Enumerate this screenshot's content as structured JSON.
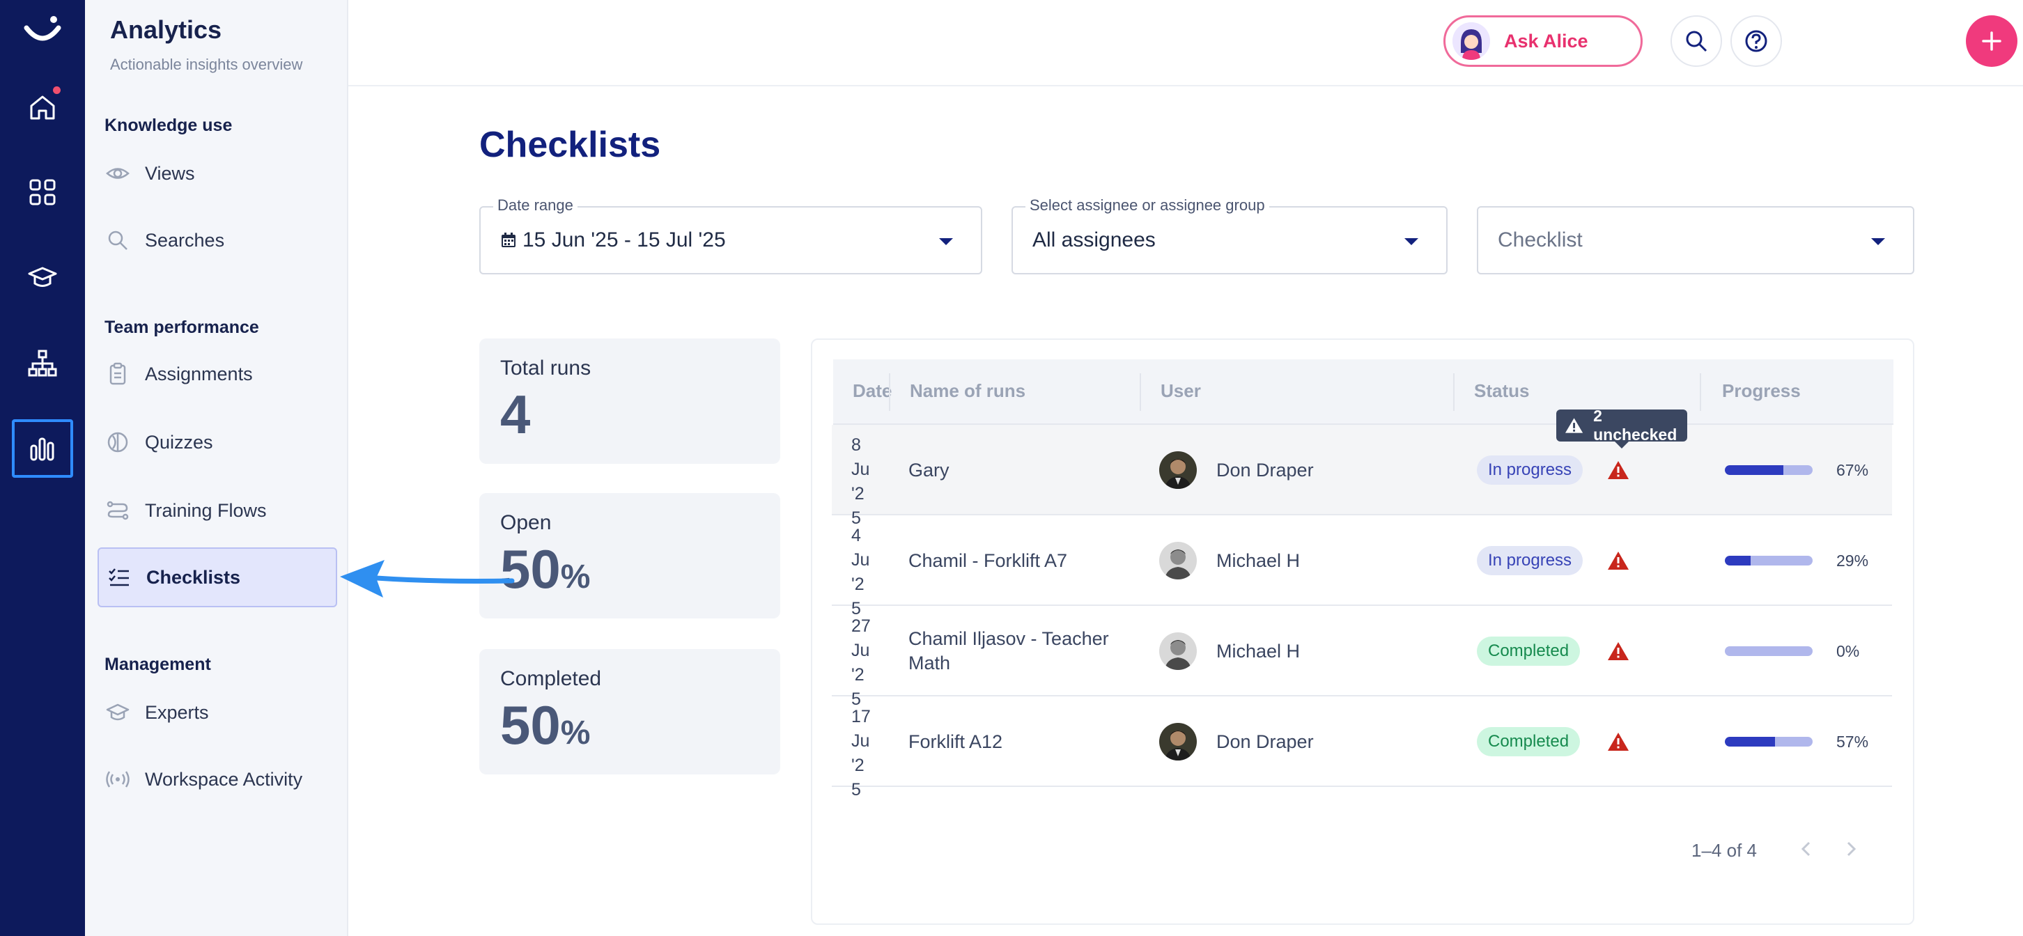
{
  "sidebar": {
    "title": "Analytics",
    "subtitle": "Actionable insights overview",
    "sections": [
      {
        "label": "Knowledge use"
      },
      {
        "label": "Team performance"
      },
      {
        "label": "Management"
      }
    ],
    "items": [
      {
        "label": "Views",
        "icon": "eye-icon"
      },
      {
        "label": "Searches",
        "icon": "search-icon"
      },
      {
        "label": "Assignments",
        "icon": "clipboard-icon"
      },
      {
        "label": "Quizzes",
        "icon": "quiz-icon"
      },
      {
        "label": "Training Flows",
        "icon": "flow-icon"
      },
      {
        "label": "Checklists",
        "icon": "checklist-icon",
        "active": true
      },
      {
        "label": "Experts",
        "icon": "graduation-cap-icon"
      },
      {
        "label": "Workspace Activity",
        "icon": "broadcast-icon"
      }
    ]
  },
  "rail": {
    "items": [
      "logo-icon",
      "home-icon",
      "apps-grid-icon",
      "graduation-cap-icon",
      "org-chart-icon",
      "analytics-bar-icon"
    ],
    "active": "analytics-bar-icon",
    "notification_color": "#f0506e"
  },
  "topbar": {
    "ask_label": "Ask Alice"
  },
  "page": {
    "title": "Checklists"
  },
  "filters": {
    "date_range": {
      "label": "Date range",
      "value": "15 Jun '25 - 15 Jul '25"
    },
    "assignee": {
      "label": "Select assignee or assignee group",
      "value": "All assignees"
    },
    "checklist": {
      "placeholder": "Checklist"
    }
  },
  "stats": {
    "total_runs": {
      "label": "Total runs",
      "value": "4"
    },
    "open": {
      "label": "Open",
      "value": "50",
      "unit": "%"
    },
    "completed": {
      "label": "Completed",
      "value": "50",
      "unit": "%"
    }
  },
  "table": {
    "columns": [
      "Date",
      "Name of runs",
      "User",
      "Status",
      "Progress"
    ],
    "rows": [
      {
        "date": "8 Ju '25",
        "name": "Gary",
        "user": "Don Draper",
        "status": "In progress",
        "status_kind": "progress",
        "progress": 67,
        "progress_label": "67%"
      },
      {
        "date": "4 Ju '25",
        "name": "Chamil - Forklift A7",
        "user": "Michael H",
        "status": "In progress",
        "status_kind": "progress",
        "progress": 29,
        "progress_label": "29%"
      },
      {
        "date": "27 Ju '25",
        "name": "Chamil Iljasov - Teacher Math",
        "user": "Michael H",
        "status": "Completed",
        "status_kind": "done",
        "progress": 0,
        "progress_label": "0%"
      },
      {
        "date": "17 Ju '25",
        "name": "Forklift A12",
        "user": "Don Draper",
        "status": "Completed",
        "status_kind": "done",
        "progress": 57,
        "progress_label": "57%"
      }
    ],
    "tooltip": "2 unchecked",
    "pagination": "1–4 of 4"
  },
  "colors": {
    "accent": "#12217d",
    "rail": "#0d1a5c",
    "pink": "#f03a7d",
    "warning": "#c8261c"
  }
}
